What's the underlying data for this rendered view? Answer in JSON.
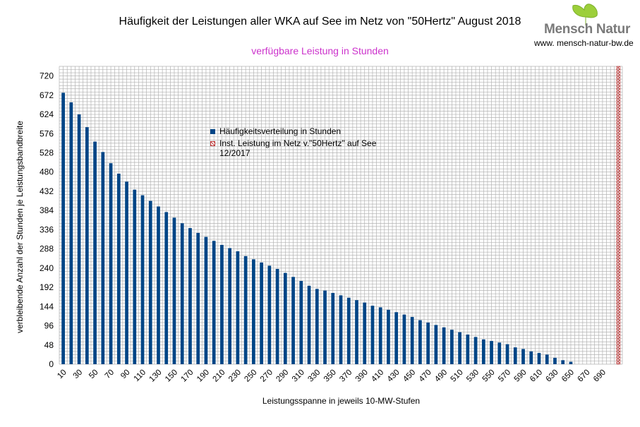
{
  "header": {
    "title": "Häufigkeit der Leistungen aller WKA auf See im Netz von \"50Hertz\" August 2018",
    "subtitle": "verfügbare Leistung in Stunden",
    "logo_text": "Mensch Natur",
    "logo_url": "www. mensch-natur-bw.de"
  },
  "colors": {
    "bar": "#004586",
    "hatch": "#c04040",
    "grid": "#b3b3b3",
    "subtitle": "#cc33cc"
  },
  "legend": {
    "series1": "Häufigkeitsverteilung in Stunden",
    "series2": "Inst. Leistung im Netz v.\"50Hertz\" auf See 12/2017"
  },
  "chart_data": {
    "type": "bar",
    "title": "Häufigkeit der Leistungen aller WKA auf See im Netz von \"50Hertz\" August 2018",
    "subtitle": "verfügbare Leistung in Stunden",
    "xlabel": "Leistungsspanne in jeweils 10-MW-Stufen",
    "ylabel": "verbleibende Anzahl der Stunden je Leistungsbandbreite",
    "ylim": [
      0,
      744
    ],
    "yticks": [
      0,
      48,
      96,
      144,
      192,
      240,
      288,
      336,
      384,
      432,
      480,
      528,
      576,
      624,
      672,
      720
    ],
    "xtick_labels": [
      "10",
      "30",
      "50",
      "70",
      "90",
      "110",
      "130",
      "150",
      "170",
      "190",
      "210",
      "230",
      "250",
      "270",
      "290",
      "310",
      "330",
      "350",
      "370",
      "390",
      "410",
      "430",
      "450",
      "470",
      "490",
      "510",
      "530",
      "550",
      "570",
      "590",
      "610",
      "630",
      "650",
      "670",
      "690"
    ],
    "categories": [
      "10",
      "20",
      "30",
      "40",
      "50",
      "60",
      "70",
      "80",
      "90",
      "100",
      "110",
      "120",
      "130",
      "140",
      "150",
      "160",
      "170",
      "180",
      "190",
      "200",
      "210",
      "220",
      "230",
      "240",
      "250",
      "260",
      "270",
      "280",
      "290",
      "300",
      "310",
      "320",
      "330",
      "340",
      "350",
      "360",
      "370",
      "380",
      "390",
      "400",
      "410",
      "420",
      "430",
      "440",
      "450",
      "460",
      "470",
      "480",
      "490",
      "500",
      "510",
      "520",
      "530",
      "540",
      "550",
      "560",
      "570",
      "580",
      "590",
      "600",
      "610",
      "620",
      "630",
      "640",
      "650",
      "660",
      "670",
      "680",
      "690",
      "700"
    ],
    "series": [
      {
        "name": "Häufigkeitsverteilung in Stunden",
        "values": [
          678,
          654,
          624,
          592,
          556,
          530,
          502,
          476,
          456,
          436,
          422,
          408,
          394,
          380,
          366,
          352,
          340,
          328,
          318,
          308,
          298,
          290,
          282,
          270,
          262,
          254,
          246,
          238,
          228,
          218,
          208,
          196,
          188,
          184,
          178,
          172,
          166,
          160,
          154,
          146,
          142,
          136,
          130,
          124,
          118,
          110,
          104,
          98,
          92,
          86,
          80,
          74,
          68,
          62,
          58,
          54,
          50,
          42,
          38,
          32,
          28,
          24,
          16,
          10,
          6,
          0,
          0,
          0,
          0,
          0
        ]
      },
      {
        "name": "Inst. Leistung im Netz v.\"50Hertz\" auf See 12/2017",
        "installed_capacity_mw": 705
      }
    ],
    "grid": true,
    "legend_position": "center"
  }
}
